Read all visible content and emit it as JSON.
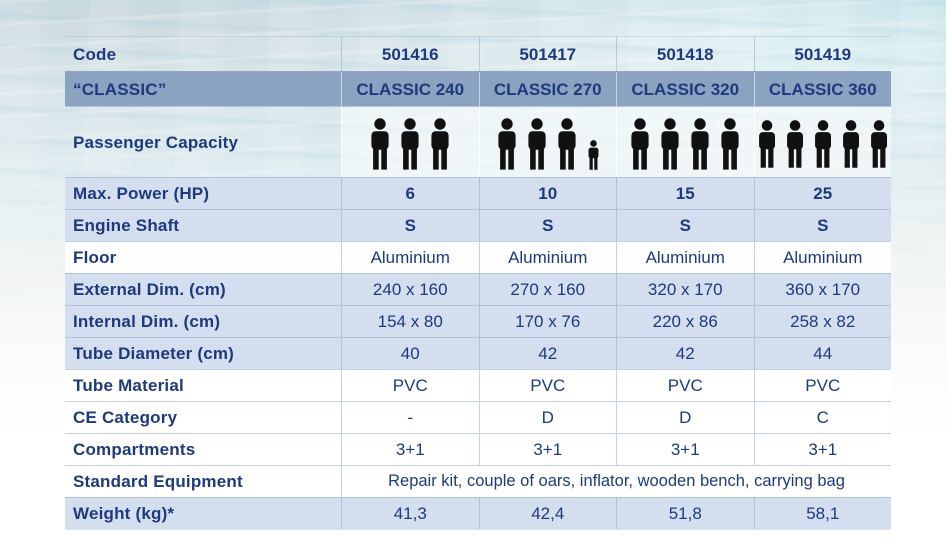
{
  "table": {
    "code_row": {
      "label": "Code",
      "values": [
        "501416",
        "501417",
        "501418",
        "501419"
      ]
    },
    "classic_row": {
      "label": "“CLASSIC”",
      "values": [
        "CLASSIC 240",
        "CLASSIC 270",
        "CLASSIC 320",
        "CLASSIC 360"
      ]
    },
    "passenger_row": {
      "label": "Passenger Capacity",
      "adults": [
        3,
        3,
        4,
        5
      ],
      "children": [
        0,
        1,
        0,
        0
      ],
      "icons": [
        "person-icon",
        "child-person-icon"
      ]
    },
    "spec_rows": [
      {
        "label": "Max. Power (HP)",
        "values": [
          "6",
          "10",
          "15",
          "25"
        ]
      },
      {
        "label": "Engine Shaft",
        "values": [
          "S",
          "S",
          "S",
          "S"
        ]
      },
      {
        "label": "Floor",
        "values": [
          "Aluminium",
          "Aluminium",
          "Aluminium",
          "Aluminium"
        ]
      },
      {
        "label": "External Dim. (cm)",
        "values": [
          "240 x 160",
          "270 x 160",
          "320 x 170",
          "360 x 170"
        ]
      },
      {
        "label": "Internal Dim. (cm)",
        "values": [
          "154 x 80",
          "170 x 76",
          "220 x 86",
          "258 x 82"
        ]
      },
      {
        "label": "Tube Diameter (cm)",
        "values": [
          "40",
          "42",
          "42",
          "44"
        ]
      },
      {
        "label": "Tube Material",
        "values": [
          "PVC",
          "PVC",
          "PVC",
          "PVC"
        ]
      },
      {
        "label": "CE Category",
        "values": [
          "-",
          "D",
          "D",
          "C"
        ]
      },
      {
        "label": "Compartments",
        "values": [
          "3+1",
          "3+1",
          "3+1",
          "3+1"
        ]
      },
      {
        "label": "Standard Equipment",
        "span": "Repair kit, couple of oars, inflator, wooden bench, carrying bag"
      },
      {
        "label": "Weight (kg)*",
        "values": [
          "41,3",
          "42,4",
          "51,8",
          "58,1"
        ]
      }
    ],
    "colors": {
      "text_navy": "#1e3a7c",
      "band_blue": "#8ba2c1",
      "row_blue": "#d3deee",
      "grid_line": "#96aac6",
      "icon_black": "#111111",
      "water_top": "#b7dbe4"
    }
  }
}
